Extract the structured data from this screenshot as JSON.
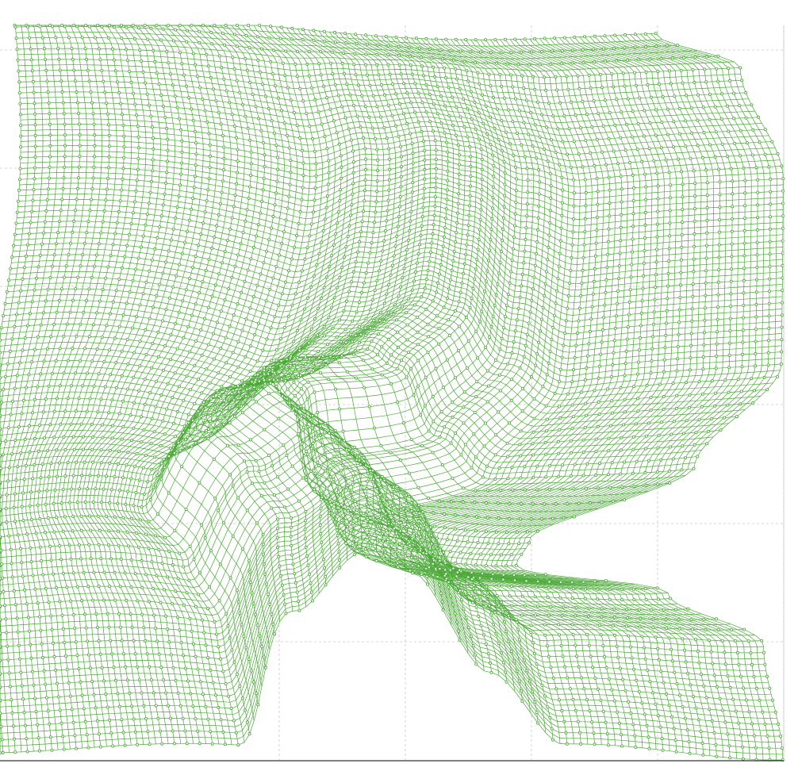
{
  "chart_data": {
    "type": "scatter",
    "description_style": "deformed-mesh",
    "title": "",
    "xlabel": "",
    "ylabel": "",
    "grid": true,
    "legend": "none",
    "mesh": {
      "columns": 120,
      "rows": 120,
      "x_range": [
        0,
        1
      ],
      "y_range": [
        0,
        1
      ]
    },
    "style": {
      "mesh_color": "#4aa936",
      "point_color": "#4aa936",
      "grid_color": "#c8c8c8",
      "axis_color": "#000000",
      "background": "#ffffff"
    }
  }
}
